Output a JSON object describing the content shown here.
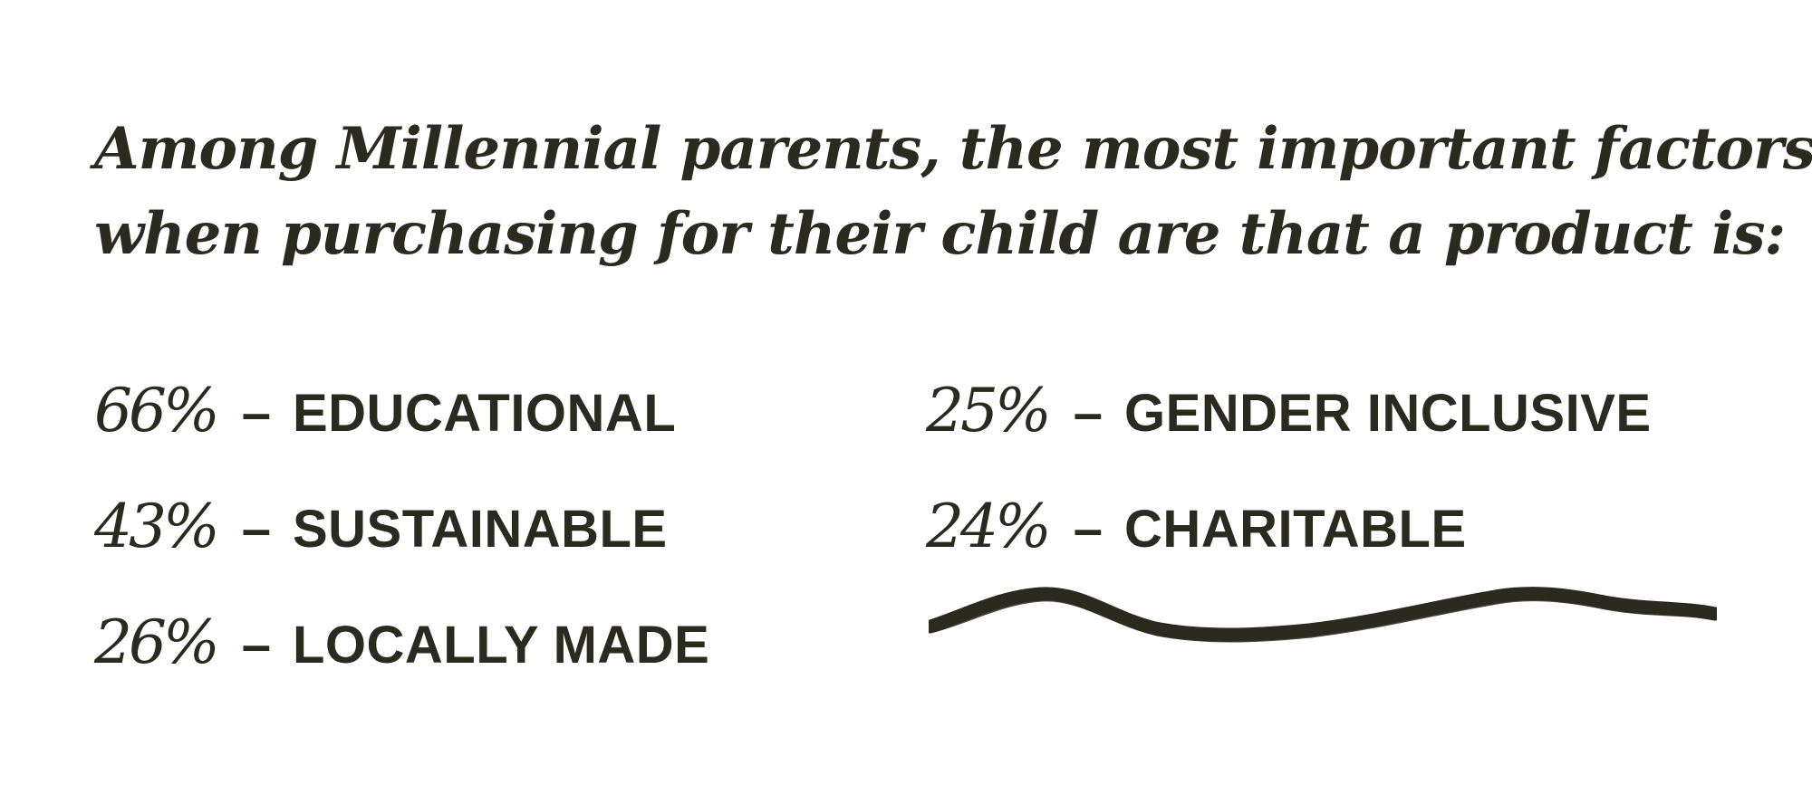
{
  "heading": {
    "line1": "Among Millennial parents, the most important factors",
    "line2": "when purchasing for their child are that a product is:"
  },
  "stats": {
    "left": [
      {
        "percent": "66%",
        "dash": "–",
        "label": "EDUCATIONAL"
      },
      {
        "percent": "43%",
        "dash": "–",
        "label": "SUSTAINABLE"
      },
      {
        "percent": "26%",
        "dash": "–",
        "label": "LOCALLY MADE"
      }
    ],
    "right": [
      {
        "percent": "25%",
        "dash": "–",
        "label": "GENDER INCLUSIVE"
      },
      {
        "percent": "24%",
        "dash": "–",
        "label": "CHARITABLE"
      }
    ]
  },
  "colors": {
    "text": "#2b2a1e",
    "background": "#ffffff"
  },
  "decoration": {
    "icon": "brush-stroke-squiggle"
  }
}
